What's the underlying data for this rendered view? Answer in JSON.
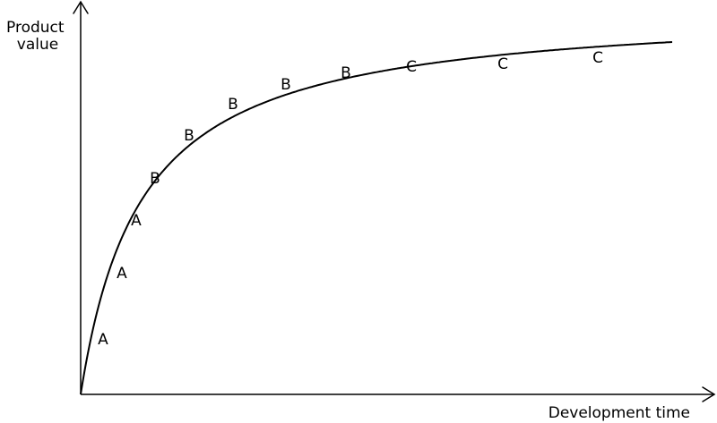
{
  "y_axis": {
    "title_lines": [
      "Product",
      "value"
    ]
  },
  "x_axis": {
    "title": "Development time"
  },
  "curve_labels": [
    "A",
    "A",
    "A",
    "B",
    "B",
    "B",
    "B",
    "B",
    "C",
    "C",
    "C"
  ]
}
